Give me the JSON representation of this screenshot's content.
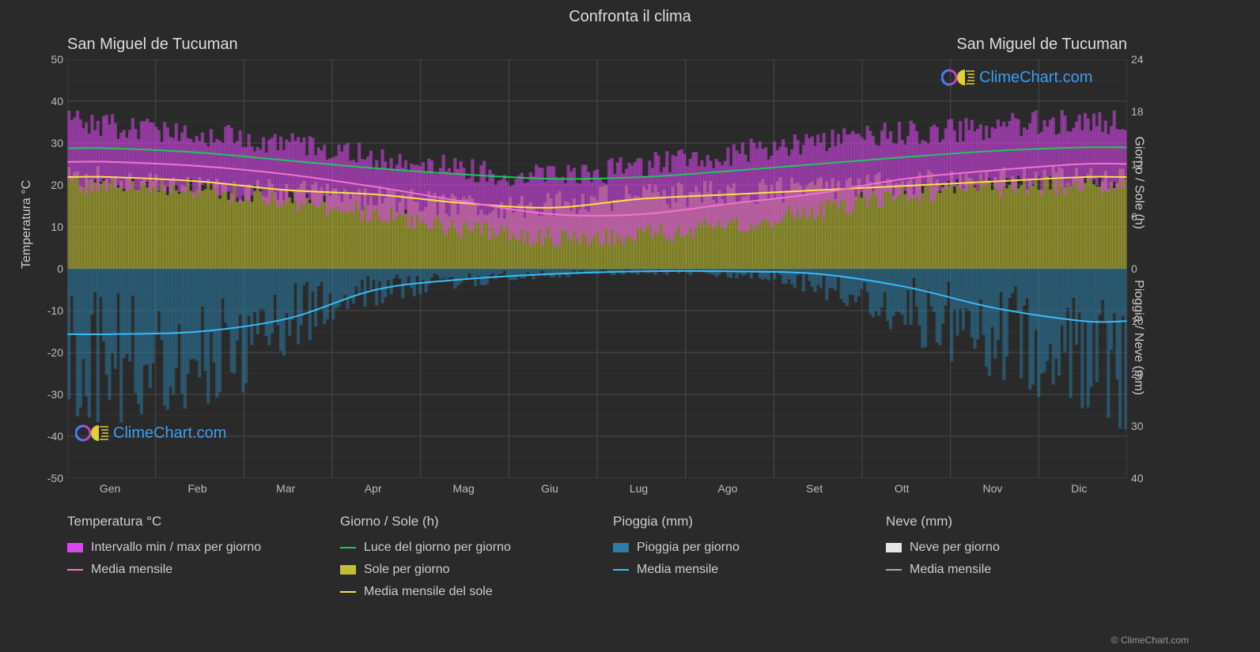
{
  "title": "Confronta il clima",
  "subtitle_left": "San Miguel de Tucuman",
  "subtitle_right": "San Miguel de Tucuman",
  "watermark_text": "ClimeChart.com",
  "copyright": "© ClimeChart.com",
  "axes": {
    "y_left_label": "Temperatura °C",
    "y_right_label_top": "Giorno / Sole (h)",
    "y_right_label_bottom": "Pioggia / Neve (mm)",
    "y_left_ticks": [
      50,
      40,
      30,
      20,
      10,
      0,
      -10,
      -20,
      -30,
      -40,
      -50
    ],
    "y_right_top_ticks": [
      24,
      18,
      12,
      6,
      0
    ],
    "y_right_bottom_ticks": [
      10,
      20,
      30,
      40
    ],
    "x_labels": [
      "Gen",
      "Feb",
      "Mar",
      "Apr",
      "Mag",
      "Giu",
      "Lug",
      "Ago",
      "Set",
      "Ott",
      "Nov",
      "Dic"
    ]
  },
  "chart": {
    "background_color": "#2a2a2a",
    "grid_color": "#4a4a4a",
    "grid_color_minor": "#3a3a3a",
    "temp_range_color": "#d946ef",
    "temp_range_opacity": 0.55,
    "temp_mean_color": "#f472d0",
    "daylight_color": "#22c55e",
    "sun_fill_color": "#c0c030",
    "sun_fill_opacity": 0.55,
    "sun_mean_color": "#fde047",
    "rain_fill_color": "#2a7da8",
    "rain_fill_opacity": 0.5,
    "rain_mean_color": "#38bdf8",
    "snow_fill_color": "#e5e5e5",
    "snow_mean_color": "#aaaaaa",
    "y_left_min": -50,
    "y_left_max": 50,
    "y_right_top_min": 0,
    "y_right_top_max": 24,
    "y_right_bottom_min": 0,
    "y_right_bottom_max": 40,
    "monthly": [
      {
        "m": "Gen",
        "t_min": 20,
        "t_max": 35,
        "t_mean": 25.5,
        "daylight": 13.8,
        "sun": 10.5,
        "rain": 12.5,
        "snow": 0
      },
      {
        "m": "Feb",
        "t_min": 20,
        "t_max": 33,
        "t_mean": 24.5,
        "daylight": 13.3,
        "sun": 10,
        "rain": 12,
        "snow": 0
      },
      {
        "m": "Mar",
        "t_min": 18,
        "t_max": 31,
        "t_mean": 22.5,
        "daylight": 12.4,
        "sun": 9,
        "rain": 9.5,
        "snow": 0
      },
      {
        "m": "Apr",
        "t_min": 15,
        "t_max": 28,
        "t_mean": 19.5,
        "daylight": 11.5,
        "sun": 8.5,
        "rain": 4,
        "snow": 0
      },
      {
        "m": "Mag",
        "t_min": 11,
        "t_max": 25,
        "t_mean": 16,
        "daylight": 10.8,
        "sun": 7.5,
        "rain": 2,
        "snow": 0
      },
      {
        "m": "Giu",
        "t_min": 8,
        "t_max": 22,
        "t_mean": 13,
        "daylight": 10.3,
        "sun": 7,
        "rain": 1,
        "snow": 0
      },
      {
        "m": "Lug",
        "t_min": 7,
        "t_max": 23,
        "t_mean": 13,
        "daylight": 10.5,
        "sun": 8,
        "rain": 0.5,
        "snow": 0
      },
      {
        "m": "Ago",
        "t_min": 9,
        "t_max": 26,
        "t_mean": 15.5,
        "daylight": 11.2,
        "sun": 8.5,
        "rain": 0.5,
        "snow": 0
      },
      {
        "m": "Set",
        "t_min": 12,
        "t_max": 29,
        "t_mean": 18,
        "daylight": 12,
        "sun": 9,
        "rain": 1,
        "snow": 0
      },
      {
        "m": "Ott",
        "t_min": 16,
        "t_max": 32,
        "t_mean": 21.5,
        "daylight": 12.8,
        "sun": 9.5,
        "rain": 3.5,
        "snow": 0
      },
      {
        "m": "Nov",
        "t_min": 19,
        "t_max": 33,
        "t_mean": 23.5,
        "daylight": 13.5,
        "sun": 10,
        "rain": 7.5,
        "snow": 0
      },
      {
        "m": "Dic",
        "t_min": 20,
        "t_max": 35,
        "t_mean": 25,
        "daylight": 13.9,
        "sun": 10.5,
        "rain": 10,
        "snow": 0
      }
    ]
  },
  "legend": {
    "col1_header": "Temperatura °C",
    "col1_item1": "Intervallo min / max per giorno",
    "col1_item2": "Media mensile",
    "col2_header": "Giorno / Sole (h)",
    "col2_item1": "Luce del giorno per giorno",
    "col2_item2": "Sole per giorno",
    "col2_item3": "Media mensile del sole",
    "col3_header": "Pioggia (mm)",
    "col3_item1": "Pioggia per giorno",
    "col3_item2": "Media mensile",
    "col4_header": "Neve (mm)",
    "col4_item1": "Neve per giorno",
    "col4_item2": "Media mensile"
  }
}
